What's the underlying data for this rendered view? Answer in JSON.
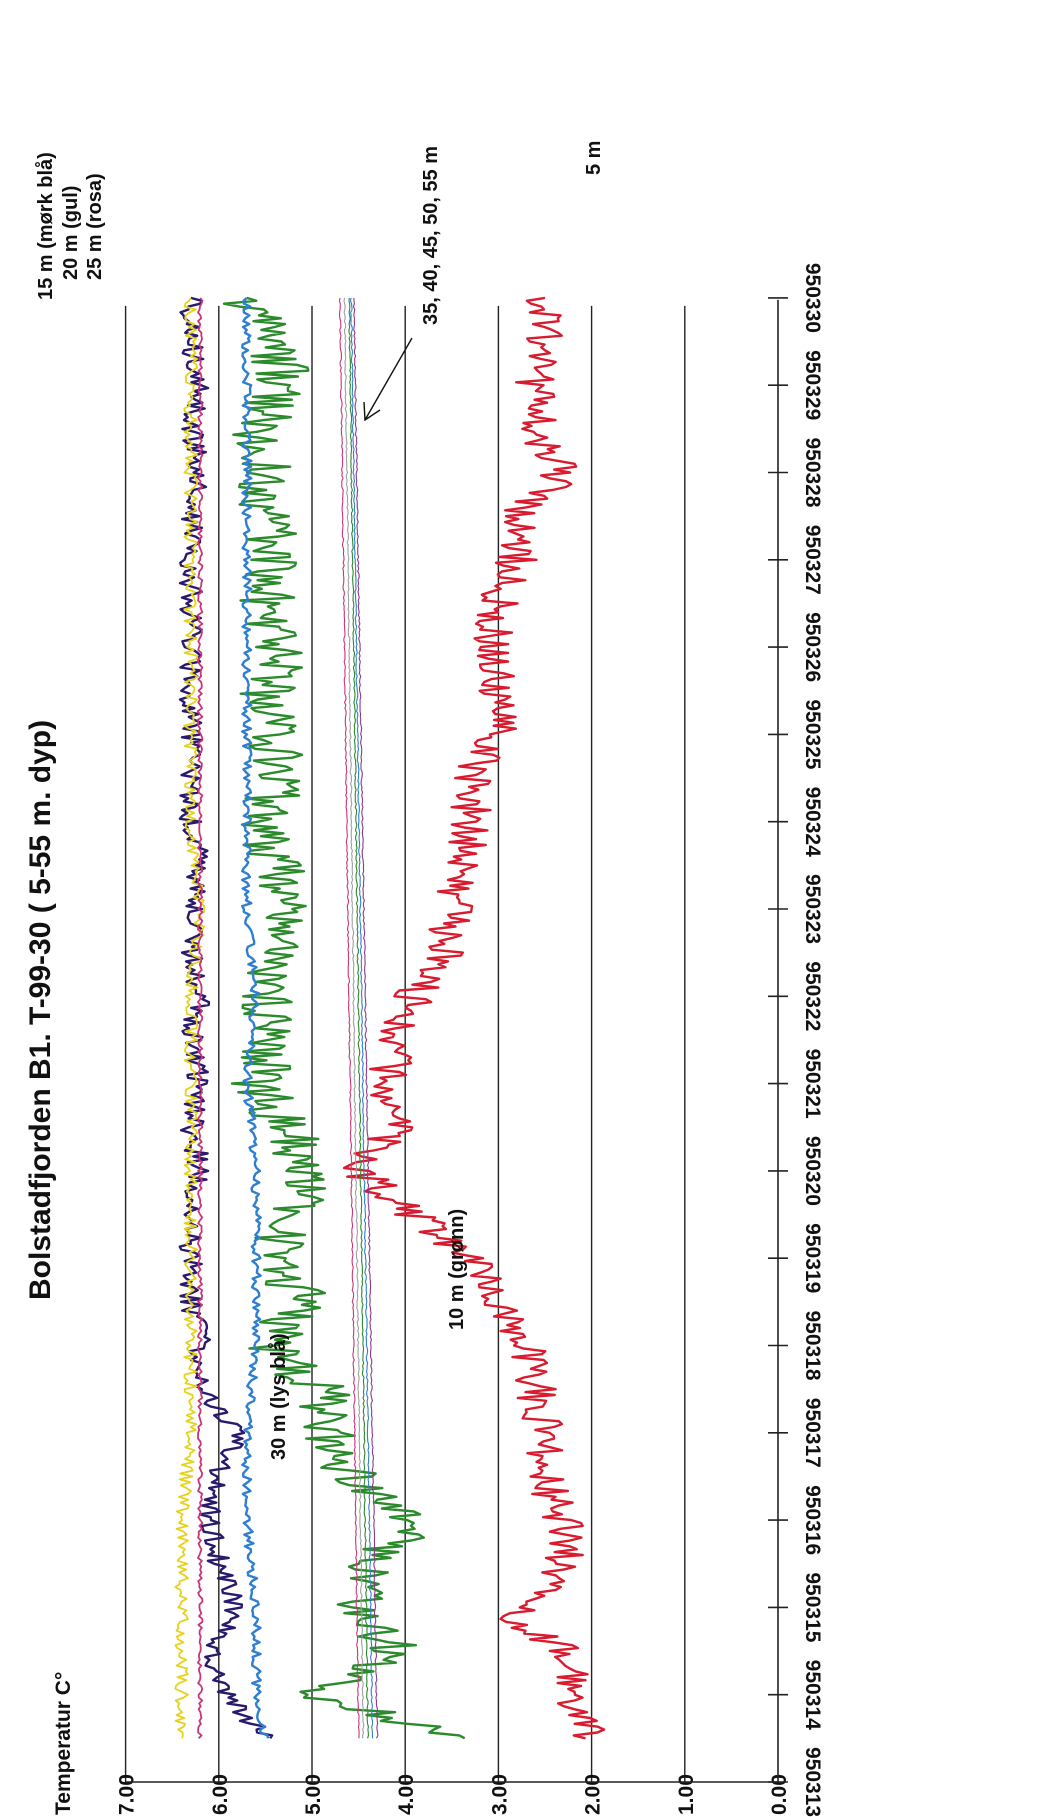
{
  "chart_data": {
    "type": "line",
    "title": "Bolstadfjorden B1.   T-99-30  ( 5-55 m. dyp)",
    "ylabel": "Temperatur  C°",
    "xlabel": "",
    "orientation": "rotated-90-clockwise",
    "ylim": [
      0,
      7
    ],
    "y_ticks": [
      "0.00",
      "1.00",
      "2.00",
      "3.00",
      "4.00",
      "5.00",
      "6.00",
      "7.00"
    ],
    "xlim": [
      950313,
      950330
    ],
    "x_ticks": [
      "950313",
      "950314",
      "950315",
      "950316",
      "950317",
      "950318",
      "950319",
      "950320",
      "950321",
      "950322",
      "950323",
      "950324",
      "950325",
      "950326",
      "950327",
      "950328",
      "950329",
      "950330"
    ],
    "grid": true,
    "annotations": {
      "depth_15": "15 m (mørk blå)",
      "depth_20": "20 m (gul)",
      "depth_25": "25 m (rosa)",
      "depth_deep": "35, 40, 45, 50, 55 m",
      "depth_5": "5 m",
      "depth_10": "10 m (grønn)",
      "depth_30": "30 m (lys blå)"
    },
    "series": [
      {
        "name": "5 m",
        "color": "#d81b2e",
        "x": [
          950313.5,
          950314,
          950314.5,
          950314.9,
          950315,
          950315.5,
          950316,
          950316.5,
          950317,
          950317.5,
          950318,
          950318.5,
          950319,
          950319.5,
          950320,
          950320.5,
          950321,
          950321.5,
          950322,
          950322.5,
          950323,
          950323.5,
          950324,
          950324.5,
          950325,
          950325.5,
          950326,
          950326.5,
          950327,
          950327.5,
          950328,
          950328.5,
          950329,
          950329.5,
          950330
        ],
        "values": [
          2.0,
          2.2,
          2.3,
          2.9,
          2.6,
          2.3,
          2.3,
          2.5,
          2.5,
          2.6,
          2.7,
          3.0,
          3.3,
          3.9,
          4.5,
          4.1,
          4.2,
          4.1,
          3.9,
          3.6,
          3.5,
          3.4,
          3.3,
          3.3,
          3.0,
          3.0,
          3.1,
          3.0,
          2.8,
          2.8,
          2.3,
          2.6,
          2.6,
          2.5,
          2.5
        ]
      },
      {
        "name": "10 m",
        "color": "#2b8a2b",
        "x": [
          950313.5,
          950314,
          950314.5,
          950315,
          950315.5,
          950316,
          950316.5,
          950317,
          950317.5,
          950318,
          950318.5,
          950319,
          950319.5,
          950320,
          950320.5,
          950321,
          950321.5,
          950322,
          950322.5,
          950323,
          950323.5,
          950324,
          950324.5,
          950325,
          950325.5,
          950326,
          950326.5,
          950327,
          950327.5,
          950328,
          950328.5,
          950329,
          950329.5,
          950330
        ],
        "values": [
          3.3,
          5.0,
          4.1,
          4.5,
          4.3,
          3.9,
          4.6,
          4.8,
          4.9,
          5.5,
          5.1,
          5.4,
          5.2,
          5.0,
          5.3,
          5.6,
          5.4,
          5.5,
          5.3,
          5.2,
          5.4,
          5.6,
          5.3,
          5.4,
          5.5,
          5.3,
          5.5,
          5.4,
          5.5,
          5.5,
          5.6,
          5.3,
          5.4,
          5.7
        ]
      },
      {
        "name": "15 m",
        "color": "#2a1a6e",
        "x": [
          950313.5,
          950314,
          950314.5,
          950315,
          950315.5,
          950316,
          950316.5,
          950317,
          950317.5,
          950318,
          950318.5,
          950319,
          950319.5,
          950320,
          950320.5,
          950321,
          950321.5,
          950322,
          950322.5,
          950323,
          950323.5,
          950324,
          950324.5,
          950325,
          950325.5,
          950326,
          950326.5,
          950327,
          950327.5,
          950328,
          950328.5,
          950329,
          950329.5,
          950330
        ],
        "values": [
          5.5,
          5.9,
          6.1,
          5.8,
          6.0,
          6.1,
          6.0,
          5.8,
          6.2,
          6.2,
          6.3,
          6.3,
          6.3,
          6.2,
          6.3,
          6.2,
          6.3,
          6.2,
          6.3,
          6.3,
          6.2,
          6.3,
          6.3,
          6.3,
          6.3,
          6.3,
          6.3,
          6.3,
          6.3,
          6.2,
          6.3,
          6.2,
          6.3,
          6.3
        ]
      },
      {
        "name": "20 m",
        "color": "#e6d21a",
        "x": [
          950313.5,
          950314,
          950315,
          950316,
          950317,
          950318,
          950319,
          950320,
          950321,
          950322,
          950323,
          950324,
          950325,
          950326,
          950327,
          950328,
          950329,
          950330
        ],
        "values": [
          6.4,
          6.4,
          6.4,
          6.4,
          6.3,
          6.3,
          6.3,
          6.3,
          6.3,
          6.3,
          6.2,
          6.3,
          6.3,
          6.3,
          6.3,
          6.3,
          6.3,
          6.3
        ]
      },
      {
        "name": "25 m",
        "color": "#c8357a",
        "x": [
          950313.5,
          950314,
          950315,
          950316,
          950317,
          950318,
          950319,
          950320,
          950321,
          950322,
          950323,
          950324,
          950325,
          950326,
          950327,
          950328,
          950329,
          950330
        ],
        "values": [
          6.2,
          6.2,
          6.2,
          6.2,
          6.2,
          6.2,
          6.2,
          6.2,
          6.2,
          6.2,
          6.2,
          6.2,
          6.2,
          6.2,
          6.2,
          6.2,
          6.2,
          6.2
        ]
      },
      {
        "name": "30 m",
        "color": "#2f7fd0",
        "x": [
          950313.5,
          950314,
          950315,
          950316,
          950317,
          950318,
          950319,
          950320,
          950321,
          950322,
          950323,
          950324,
          950325,
          950326,
          950327,
          950328,
          950329,
          950330
        ],
        "values": [
          5.5,
          5.6,
          5.6,
          5.7,
          5.7,
          5.6,
          5.6,
          5.6,
          5.7,
          5.6,
          5.7,
          5.7,
          5.7,
          5.7,
          5.7,
          5.7,
          5.7,
          5.7
        ]
      },
      {
        "name": "35 m",
        "color": "#c8357a",
        "x": [
          950313.5,
          950330
        ],
        "values": [
          4.5,
          4.7
        ]
      },
      {
        "name": "40 m",
        "color": "#a0a0a0",
        "x": [
          950313.5,
          950330
        ],
        "values": [
          4.45,
          4.65
        ]
      },
      {
        "name": "45 m",
        "color": "#2b8a2b",
        "x": [
          950313.5,
          950330
        ],
        "values": [
          4.4,
          4.6
        ]
      },
      {
        "name": "50 m",
        "color": "#2f7fd0",
        "x": [
          950313.5,
          950330
        ],
        "values": [
          4.35,
          4.58
        ]
      },
      {
        "name": "55 m",
        "color": "#8b3a8b",
        "x": [
          950313.5,
          950330
        ],
        "values": [
          4.3,
          4.55
        ]
      }
    ]
  }
}
